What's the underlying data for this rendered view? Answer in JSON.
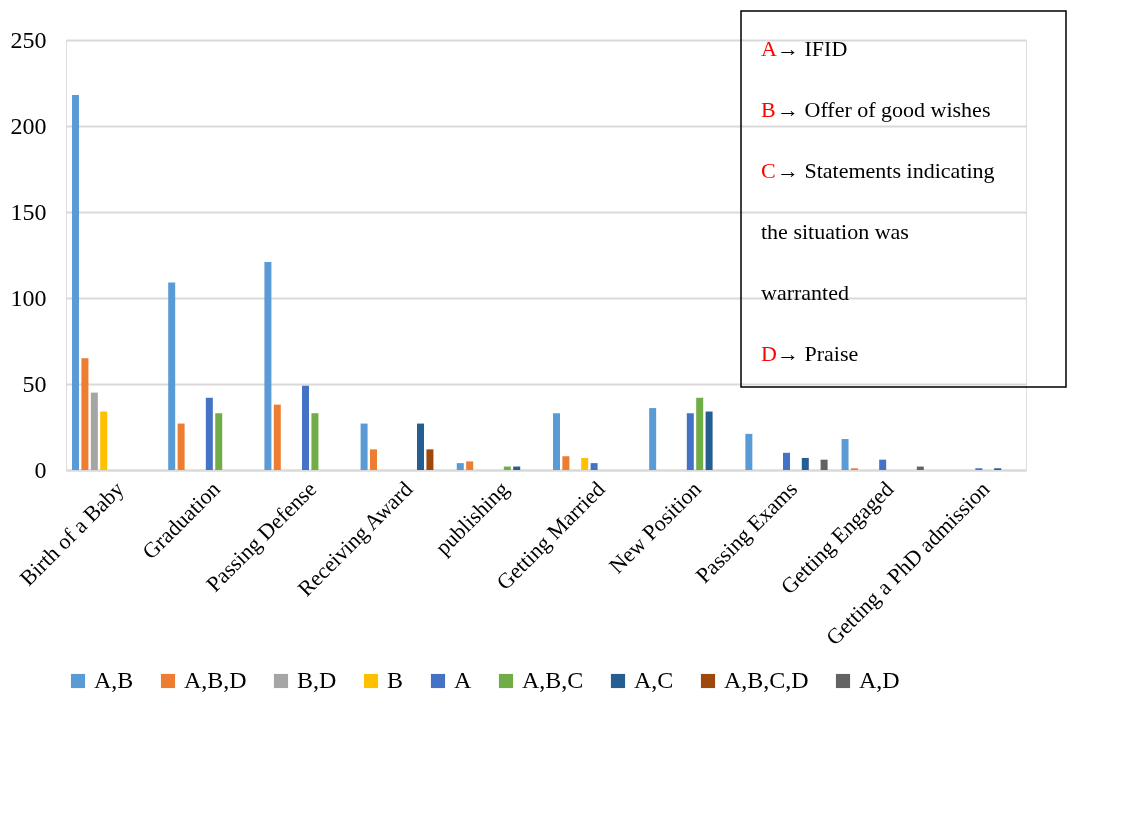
{
  "chart_data": {
    "type": "bar",
    "categories": [
      "Birth of a Baby",
      "Graduation",
      "Passing  Defense",
      "Receiving Award",
      "publishing",
      "Getting Married",
      "New Position",
      "Passing Exams",
      "Getting Engaged",
      "Getting a PhD admission"
    ],
    "series": [
      {
        "name": "A,B",
        "color": "#5b9bd5",
        "values": [
          218,
          109,
          121,
          27,
          4,
          33,
          36,
          21,
          18,
          null
        ]
      },
      {
        "name": "A,B,D",
        "color": "#ed7d31",
        "values": [
          65,
          27,
          38,
          12,
          5,
          8,
          null,
          null,
          1,
          null
        ]
      },
      {
        "name": "B,D",
        "color": "#a5a5a5",
        "values": [
          45,
          null,
          null,
          null,
          null,
          null,
          null,
          null,
          null,
          null
        ]
      },
      {
        "name": "B",
        "color": "#ffc000",
        "values": [
          34,
          null,
          null,
          null,
          null,
          7,
          null,
          null,
          null,
          null
        ]
      },
      {
        "name": "A",
        "color": "#4472c4",
        "values": [
          null,
          42,
          49,
          null,
          null,
          4,
          33,
          10,
          6,
          1
        ]
      },
      {
        "name": "A,B,C",
        "color": "#70ad47",
        "values": [
          null,
          33,
          33,
          null,
          2,
          null,
          42,
          null,
          null,
          null
        ]
      },
      {
        "name": "A,C",
        "color": "#255e91",
        "values": [
          null,
          null,
          null,
          27,
          2,
          null,
          34,
          7,
          null,
          1
        ]
      },
      {
        "name": "A,B,C,D",
        "color": "#9e480e",
        "values": [
          null,
          null,
          null,
          12,
          null,
          null,
          null,
          null,
          null,
          null
        ]
      },
      {
        "name": "A,D",
        "color": "#636363",
        "values": [
          null,
          null,
          null,
          null,
          null,
          null,
          null,
          6,
          2,
          null
        ]
      }
    ],
    "ylim": [
      0,
      250
    ],
    "yticks": [
      0,
      50,
      100,
      150,
      200,
      250
    ],
    "grid": "y",
    "legend": "bottom",
    "annotations": [
      "A→ IFID",
      "B→ Offer of good wishes",
      "C→ Statements indicating the situation was warranted",
      "D→ Praise"
    ]
  }
}
